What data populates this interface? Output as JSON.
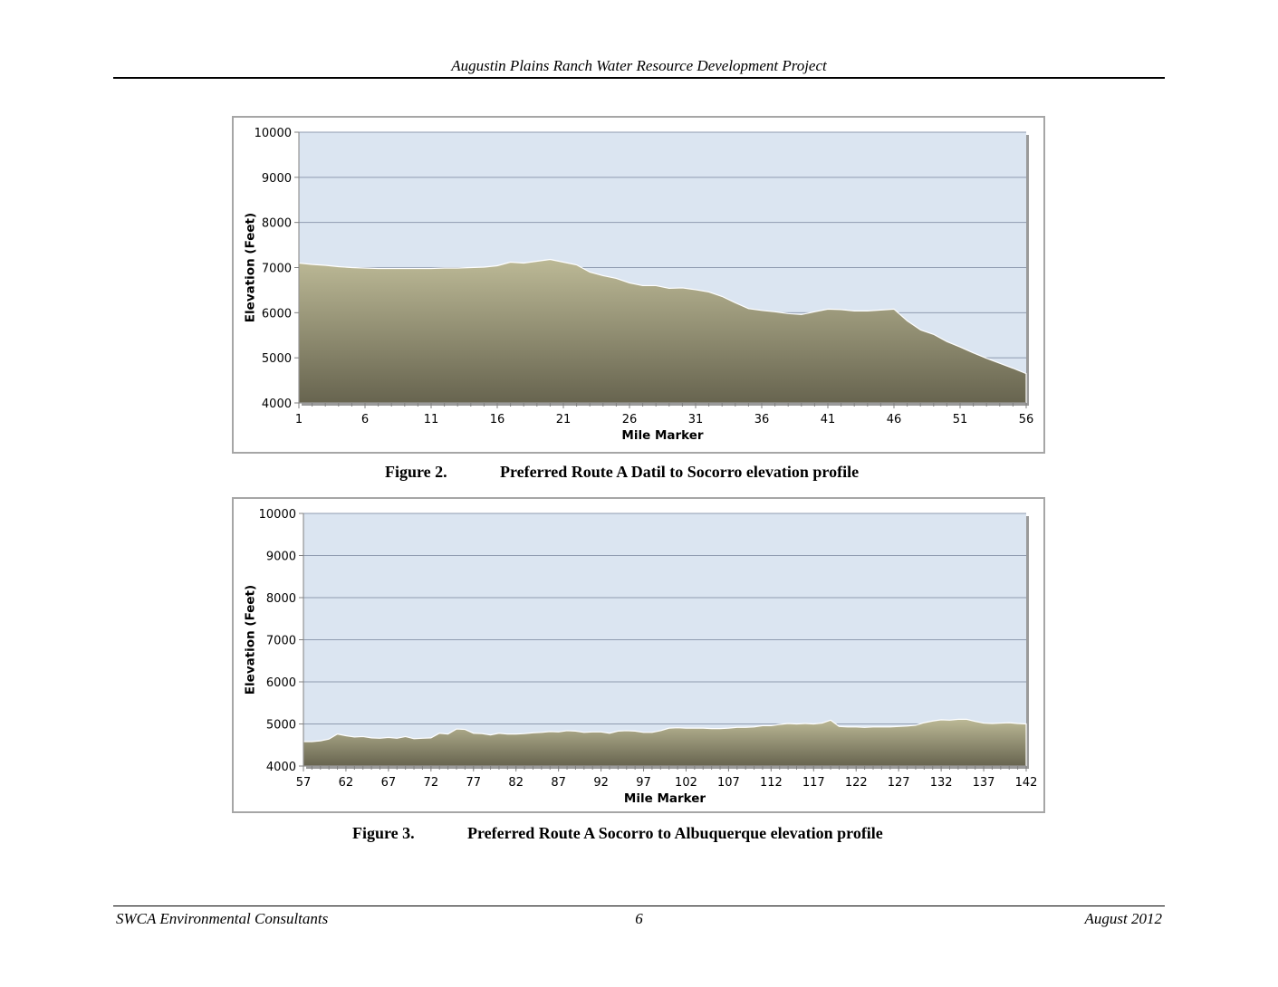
{
  "header": {
    "title": "Augustin Plains Ranch Water Resource Development Project"
  },
  "figures": [
    {
      "number": "Figure 2.",
      "title": "Preferred Route A Datil to Socorro elevation profile"
    },
    {
      "number": "Figure 3.",
      "title": "Preferred Route A Socorro to Albuquerque elevation profile"
    }
  ],
  "footer": {
    "left": "SWCA Environmental Consultants",
    "center": "6",
    "right": "August 2012"
  },
  "colors": {
    "plot_bg": "#dbe5f1",
    "area_top": "#bcb996",
    "area_bottom": "#67644f",
    "grid": "#8f9bb0"
  },
  "chart_data": [
    {
      "type": "area",
      "xlabel": "Mile Marker",
      "ylabel": "Elevation (Feet)",
      "xlim": [
        1,
        56
      ],
      "ylim": [
        4000,
        10000
      ],
      "xticks": [
        1,
        6,
        11,
        16,
        21,
        26,
        31,
        36,
        41,
        46,
        51,
        56
      ],
      "yticks": [
        4000,
        5000,
        6000,
        7000,
        8000,
        9000,
        10000
      ],
      "grid": true,
      "x": [
        1,
        2,
        3,
        4,
        5,
        6,
        7,
        8,
        9,
        10,
        11,
        12,
        13,
        14,
        15,
        16,
        17,
        18,
        19,
        20,
        21,
        22,
        23,
        24,
        25,
        26,
        27,
        28,
        29,
        30,
        31,
        32,
        33,
        34,
        35,
        36,
        37,
        38,
        39,
        40,
        41,
        42,
        43,
        44,
        45,
        46,
        47,
        48,
        49,
        50,
        51,
        52,
        53,
        54,
        55,
        56
      ],
      "y": [
        7100,
        7070,
        7050,
        7020,
        7000,
        6990,
        6980,
        6980,
        6980,
        6980,
        6980,
        6990,
        6990,
        7000,
        7010,
        7040,
        7120,
        7100,
        7140,
        7180,
        7120,
        7060,
        6900,
        6820,
        6760,
        6660,
        6600,
        6600,
        6540,
        6550,
        6510,
        6460,
        6360,
        6220,
        6090,
        6050,
        6020,
        5980,
        5960,
        6020,
        6080,
        6070,
        6040,
        6040,
        6060,
        6080,
        5820,
        5620,
        5520,
        5360,
        5240,
        5110,
        4990,
        4880,
        4770,
        4650
      ]
    },
    {
      "type": "area",
      "xlabel": "Mile Marker",
      "ylabel": "Elevation (Feet)",
      "xlim": [
        57,
        142
      ],
      "ylim": [
        4000,
        10000
      ],
      "xticks": [
        57,
        62,
        67,
        72,
        77,
        82,
        87,
        92,
        97,
        102,
        107,
        112,
        117,
        122,
        127,
        132,
        137,
        142
      ],
      "yticks": [
        4000,
        5000,
        6000,
        7000,
        8000,
        9000,
        10000
      ],
      "grid": true,
      "x": [
        57,
        58,
        59,
        60,
        61,
        62,
        63,
        64,
        65,
        66,
        67,
        68,
        69,
        70,
        71,
        72,
        73,
        74,
        75,
        76,
        77,
        78,
        79,
        80,
        81,
        82,
        83,
        84,
        85,
        86,
        87,
        88,
        89,
        90,
        91,
        92,
        93,
        94,
        95,
        96,
        97,
        98,
        99,
        100,
        101,
        102,
        103,
        104,
        105,
        106,
        107,
        108,
        109,
        110,
        111,
        112,
        113,
        114,
        115,
        116,
        117,
        118,
        119,
        120,
        121,
        122,
        123,
        124,
        125,
        126,
        127,
        128,
        129,
        130,
        131,
        132,
        133,
        134,
        135,
        136,
        137,
        138,
        139,
        140,
        141,
        142
      ],
      "y": [
        4580,
        4580,
        4600,
        4640,
        4760,
        4720,
        4690,
        4700,
        4670,
        4660,
        4680,
        4660,
        4700,
        4650,
        4660,
        4670,
        4780,
        4760,
        4880,
        4870,
        4780,
        4770,
        4740,
        4780,
        4760,
        4760,
        4770,
        4790,
        4800,
        4820,
        4810,
        4840,
        4830,
        4800,
        4810,
        4810,
        4780,
        4830,
        4840,
        4830,
        4800,
        4800,
        4840,
        4900,
        4910,
        4900,
        4900,
        4900,
        4890,
        4890,
        4900,
        4920,
        4920,
        4930,
        4960,
        4960,
        4990,
        5010,
        5000,
        5010,
        5000,
        5020,
        5090,
        4940,
        4930,
        4930,
        4920,
        4930,
        4930,
        4930,
        4940,
        4950,
        4970,
        5030,
        5070,
        5100,
        5090,
        5110,
        5110,
        5060,
        5020,
        5010,
        5020,
        5030,
        5010,
        5000
      ]
    }
  ]
}
